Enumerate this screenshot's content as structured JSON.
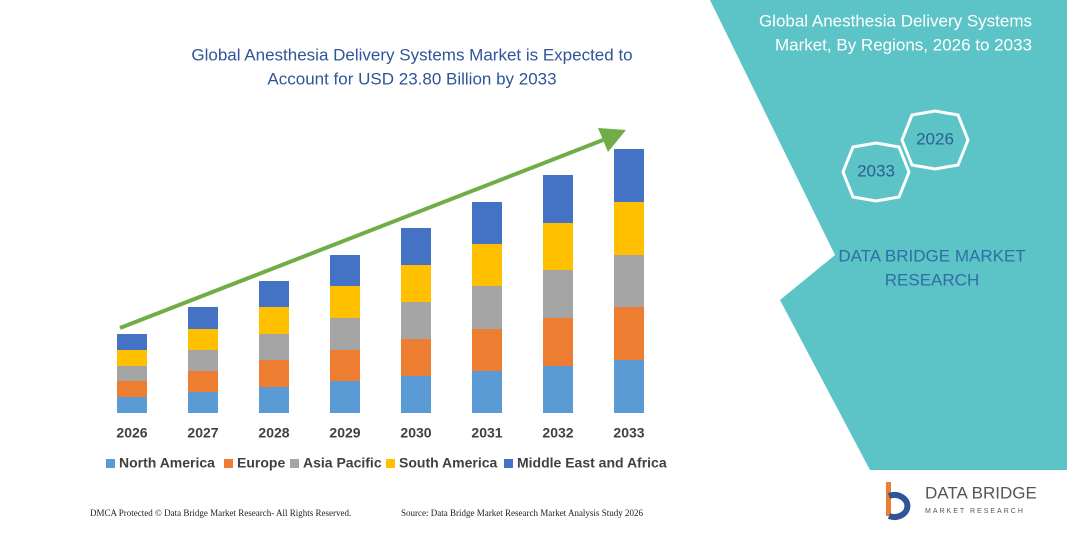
{
  "chart_data": {
    "type": "stacked_bar",
    "title": [
      "Global Anesthesia Delivery Systems Market is Expected to",
      "Account for USD 23.80 Billion by 2033"
    ],
    "categories": [
      "2026",
      "2027",
      "2028",
      "2029",
      "2030",
      "2031",
      "2032",
      "2033"
    ],
    "series": [
      {
        "name": "North America",
        "color": "#5b9bd5",
        "values": [
          16,
          21,
          26,
          32,
          37,
          42,
          47,
          53
        ]
      },
      {
        "name": "Europe",
        "color": "#ed7d31",
        "values": [
          16,
          21,
          27,
          31,
          37,
          42,
          48,
          53
        ]
      },
      {
        "name": "Asia Pacific",
        "color": "#a5a5a5",
        "values": [
          15,
          21,
          26,
          32,
          37,
          43,
          48,
          52
        ]
      },
      {
        "name": "South America",
        "color": "#ffc000",
        "values": [
          16,
          21,
          27,
          32,
          37,
          42,
          47,
          53
        ]
      },
      {
        "name": "Middle East and Africa",
        "color": "#4472c4",
        "values": [
          16,
          22,
          26,
          31,
          37,
          42,
          48,
          53
        ]
      }
    ],
    "ylim": [
      0,
      270
    ]
  },
  "panel": {
    "title": [
      "Global Anesthesia Delivery Systems",
      "Market, By Regions, 2026 to 2033"
    ],
    "hexagons": [
      "2026",
      "2033"
    ],
    "brand": [
      "DATA BRIDGE MARKET",
      "RESEARCH"
    ]
  },
  "logo": {
    "name": "DATA BRIDGE",
    "tagline": "MARKET RESEARCH"
  },
  "footer": {
    "left": "DMCA Protected © Data Bridge Market Research- All Rights Reserved.",
    "right": "Source: Data Bridge Market Research Market Analysis Study 2026"
  }
}
